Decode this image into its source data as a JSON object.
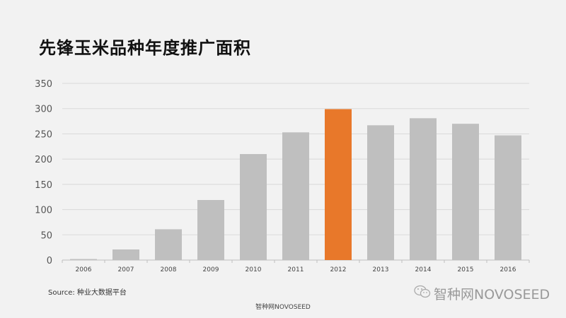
{
  "chart_data": {
    "type": "bar",
    "title": "先锋玉米品种年度推广面积",
    "xlabel": "",
    "ylabel": "",
    "categories": [
      "2006",
      "2007",
      "2008",
      "2009",
      "2010",
      "2011",
      "2012",
      "2013",
      "2014",
      "2015",
      "2016"
    ],
    "values": [
      2,
      21,
      61,
      119,
      210,
      253,
      299,
      267,
      281,
      270,
      247
    ],
    "highlight_index": 6,
    "ylim": [
      0,
      350
    ],
    "yticks": [
      0,
      50,
      100,
      150,
      200,
      250,
      300,
      350
    ],
    "grid": true,
    "legend": "none",
    "colors": {
      "bar": "#bfbfbf",
      "highlight": "#e8782a",
      "grid": "#d9d9d9"
    }
  },
  "source": "Source: 种业大数据平台",
  "center_mark": "智种网NOVOSEED",
  "watermark": "智种网NOVOSEED"
}
